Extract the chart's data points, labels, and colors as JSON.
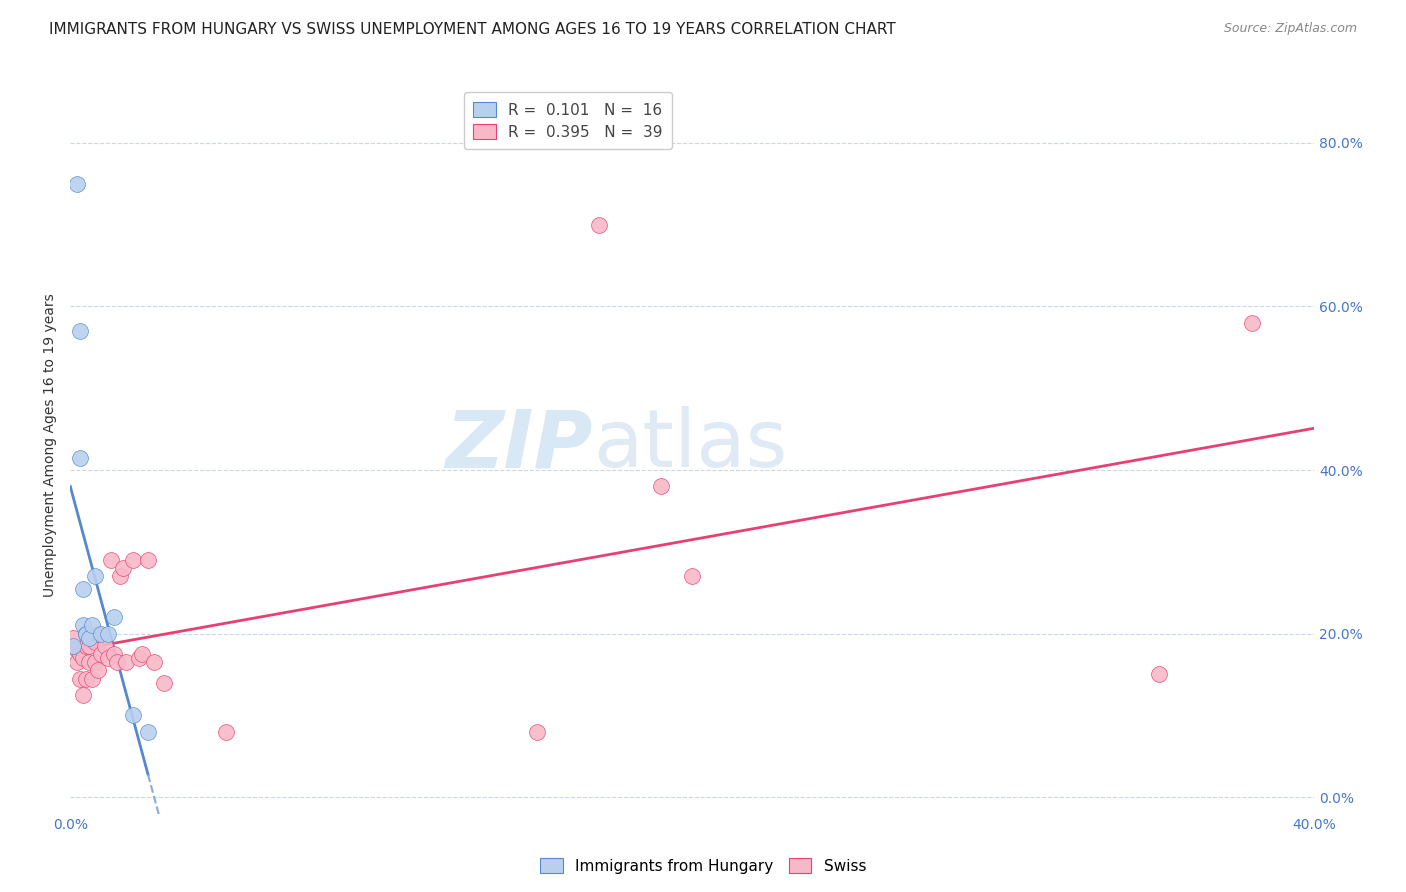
{
  "title": "IMMIGRANTS FROM HUNGARY VS SWISS UNEMPLOYMENT AMONG AGES 16 TO 19 YEARS CORRELATION CHART",
  "source": "Source: ZipAtlas.com",
  "ylabel": "Unemployment Among Ages 16 to 19 years",
  "xlim": [
    0.0,
    0.4
  ],
  "ylim": [
    -0.02,
    0.88
  ],
  "xticks": [
    0.0,
    0.05,
    0.1,
    0.15,
    0.2,
    0.25,
    0.3,
    0.35,
    0.4
  ],
  "yticks": [
    0.0,
    0.2,
    0.4,
    0.6,
    0.8
  ],
  "background_color": "#ffffff",
  "grid_color": "#c8d8e8",
  "hungary_color": "#b8d0ee",
  "swiss_color": "#f8b8c8",
  "hungary_line_color": "#5588cc",
  "swiss_line_color": "#e84070",
  "hungary_dashed_color": "#88aadd",
  "legend_hungary_R": "0.101",
  "legend_hungary_N": "16",
  "legend_swiss_R": "0.395",
  "legend_swiss_N": "39",
  "hungary_x": [
    0.001,
    0.002,
    0.003,
    0.003,
    0.004,
    0.004,
    0.005,
    0.005,
    0.006,
    0.007,
    0.008,
    0.01,
    0.012,
    0.014,
    0.02,
    0.025
  ],
  "hungary_y": [
    0.185,
    0.75,
    0.57,
    0.415,
    0.255,
    0.21,
    0.2,
    0.2,
    0.195,
    0.21,
    0.27,
    0.2,
    0.2,
    0.22,
    0.1,
    0.08
  ],
  "swiss_x": [
    0.001,
    0.002,
    0.002,
    0.003,
    0.003,
    0.004,
    0.004,
    0.005,
    0.005,
    0.006,
    0.006,
    0.007,
    0.007,
    0.008,
    0.008,
    0.009,
    0.009,
    0.01,
    0.011,
    0.012,
    0.013,
    0.014,
    0.015,
    0.016,
    0.017,
    0.018,
    0.02,
    0.022,
    0.023,
    0.025,
    0.027,
    0.03,
    0.05,
    0.15,
    0.17,
    0.19,
    0.2,
    0.35,
    0.38
  ],
  "swiss_y": [
    0.195,
    0.18,
    0.165,
    0.175,
    0.145,
    0.17,
    0.125,
    0.185,
    0.145,
    0.185,
    0.165,
    0.195,
    0.145,
    0.19,
    0.165,
    0.2,
    0.155,
    0.175,
    0.185,
    0.17,
    0.29,
    0.175,
    0.165,
    0.27,
    0.28,
    0.165,
    0.29,
    0.17,
    0.175,
    0.29,
    0.165,
    0.14,
    0.08,
    0.08,
    0.7,
    0.38,
    0.27,
    0.15,
    0.58
  ],
  "watermark_zip": "ZIP",
  "watermark_atlas": "atlas",
  "watermark_color": "#d8e8f4",
  "title_fontsize": 11,
  "axis_label_fontsize": 10,
  "tick_fontsize": 10,
  "tick_color": "#4477cc",
  "legend_fontsize": 11
}
